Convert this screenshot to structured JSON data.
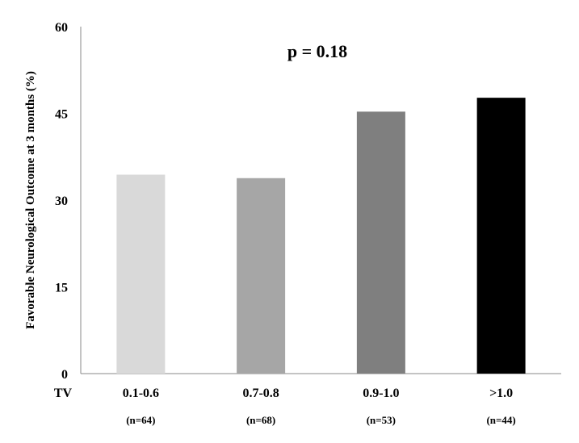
{
  "chart_data": {
    "type": "bar",
    "title": "",
    "xlabel": "",
    "x_prefix_label": "TV",
    "ylabel": "Favorable Neurological Outcome at 3 months (%)",
    "ylim": [
      0,
      60
    ],
    "yticks": [
      0,
      15,
      30,
      45,
      60
    ],
    "categories": [
      "0.1-0.6",
      "0.7-0.8",
      "0.9-1.0",
      ">1.0"
    ],
    "sample_sizes": [
      "(n=64)",
      "(n=68)",
      "(n=53)",
      "(n=44)"
    ],
    "values": [
      34.4,
      33.8,
      45.3,
      47.7
    ],
    "bar_colors": [
      "#d9d9d9",
      "#a6a6a6",
      "#7f7f7f",
      "#000000"
    ],
    "annotation": "p = 0.18",
    "grid": false,
    "legend": "none"
  }
}
